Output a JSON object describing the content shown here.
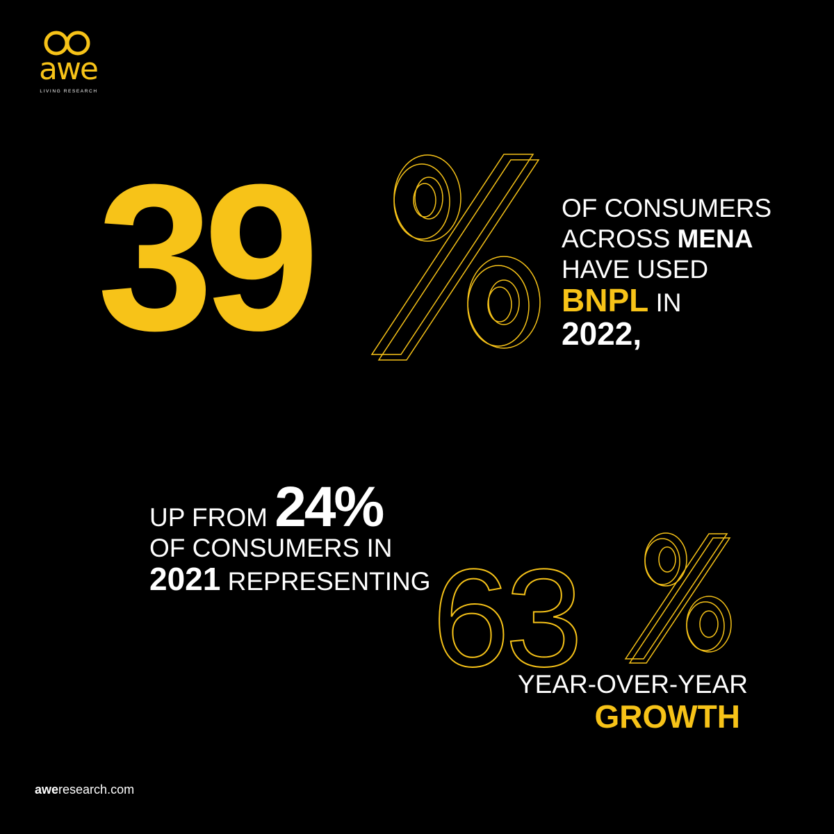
{
  "brand": {
    "logo_word": "awe",
    "tagline": "LIVING RESEARCH",
    "accent_color": "#f7c318"
  },
  "stat_main": {
    "number": "39",
    "line1": "OF CONSUMERS",
    "line2_prefix": "ACROSS ",
    "line2_highlight": "MENA",
    "line3": "HAVE USED",
    "line4_highlight": "BNPL",
    "line4_suffix": " IN",
    "line5": "2022,"
  },
  "stat_prior": {
    "prefix": "UP FROM ",
    "percent": "24%",
    "line2": "OF CONSUMERS IN",
    "year": "2021",
    "line3_suffix": " REPRESENTING"
  },
  "stat_growth": {
    "number": "63",
    "line1": "YEAR-OVER-YEAR",
    "line2": "GROWTH"
  },
  "footer": {
    "site_bold": "awe",
    "site_rest": "research.com"
  },
  "icons": [
    "infinity-logo-icon",
    "percent-outline-icon"
  ]
}
